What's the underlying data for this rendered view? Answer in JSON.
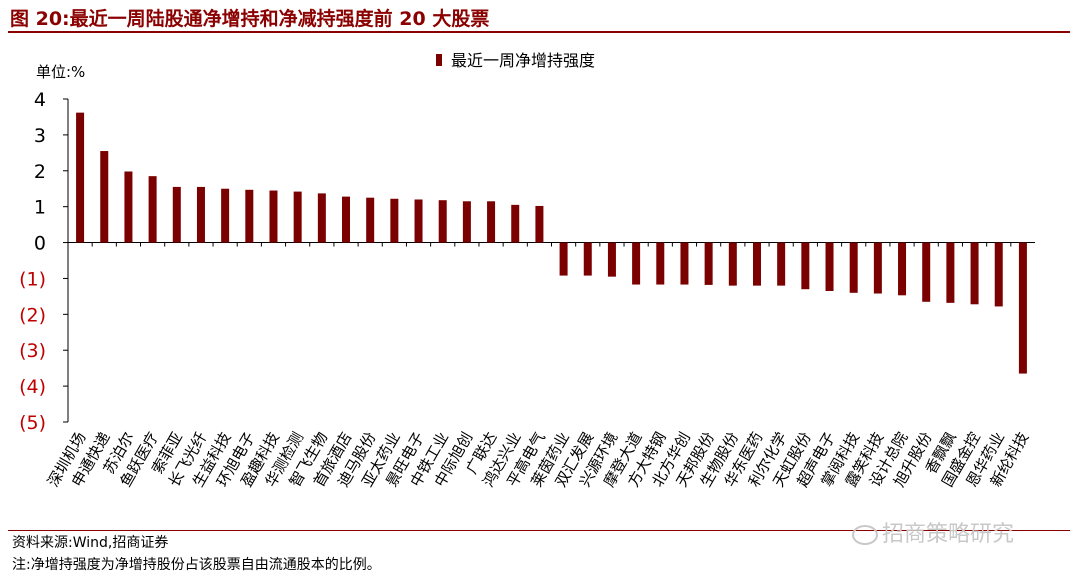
{
  "figure_title": "图 20:最近一周陆股通净增持和净减持强度前 20 大股票",
  "source_text": "资料来源:Wind,招商证券",
  "note_text": "注:净增持强度为净增持股份占该股票自由流通股本的比例。",
  "watermark_text": "招商策略研究",
  "colors": {
    "bar": "#7B0000",
    "title": "#8B0000",
    "negative_tick": "#C00000"
  },
  "chart_data": {
    "type": "bar",
    "unit_label": "单位:%",
    "legend": "最近一周净增持强度",
    "legend_position": "top-center",
    "ylim": [
      -5,
      4
    ],
    "y_ticks": [
      {
        "value": 4,
        "label": "4"
      },
      {
        "value": 3,
        "label": "3"
      },
      {
        "value": 2,
        "label": "2"
      },
      {
        "value": 1,
        "label": "1"
      },
      {
        "value": 0,
        "label": "0"
      },
      {
        "value": -1,
        "label": "(1)"
      },
      {
        "value": -2,
        "label": "(2)"
      },
      {
        "value": -3,
        "label": "(3)"
      },
      {
        "value": -4,
        "label": "(4)"
      },
      {
        "value": -5,
        "label": "(5)"
      }
    ],
    "grid": false,
    "categories": [
      "深圳机场",
      "申通快递",
      "苏泊尔",
      "鱼跃医疗",
      "索菲亚",
      "长飞光纤",
      "生益科技",
      "环旭电子",
      "盈趣科技",
      "华测检测",
      "智飞生物",
      "首旅酒店",
      "迪马股份",
      "亚太药业",
      "景旺电子",
      "中铁工业",
      "中际旭创",
      "广联达",
      "鸿达兴业",
      "平高电气",
      "莱茵药业",
      "双汇发展",
      "兴源环境",
      "摩登大道",
      "方大特钢",
      "北方华创",
      "天邦股份",
      "生物股份",
      "华东医药",
      "利尔化学",
      "天虹股份",
      "超声电子",
      "掌阅科技",
      "露笑科技",
      "设计总院",
      "旭升股份",
      "香飘飘",
      "国盛金控",
      "恩华药业",
      "新纶科技"
    ],
    "values": [
      3.62,
      2.55,
      1.98,
      1.85,
      1.55,
      1.55,
      1.5,
      1.47,
      1.45,
      1.42,
      1.37,
      1.28,
      1.25,
      1.22,
      1.2,
      1.18,
      1.15,
      1.15,
      1.05,
      1.02,
      -0.92,
      -0.92,
      -0.95,
      -1.17,
      -1.17,
      -1.17,
      -1.18,
      -1.2,
      -1.2,
      -1.2,
      -1.3,
      -1.35,
      -1.4,
      -1.42,
      -1.47,
      -1.65,
      -1.68,
      -1.72,
      -1.78,
      -3.65
    ]
  }
}
